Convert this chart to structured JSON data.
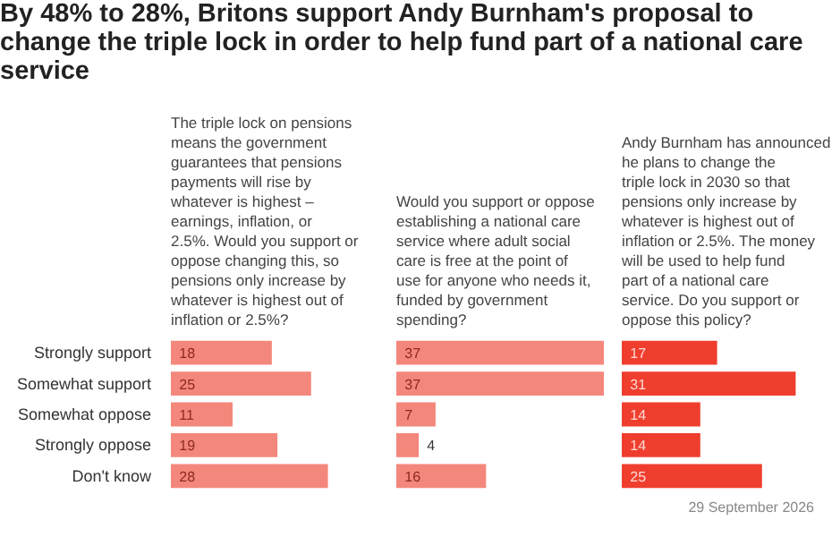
{
  "chart_data": [
    {
      "type": "bar",
      "orientation": "horizontal",
      "title": "By 48% to 28%, Britons support Andy Burnham's proposal to change the triple lock in order to help fund part of a national care service",
      "subtitle": "The triple lock on pensions means the government guarantees that pensions payments will rise by whatever is highest – earnings, inflation, or 2.5%. Would you support or oppose changing this, so pensions only increase by whatever is highest out of inflation or 2.5%?",
      "categories": [
        "Strongly support",
        "Somewhat support",
        "Somewhat oppose",
        "Strongly oppose",
        "Don't know"
      ],
      "values": [
        18,
        25,
        11,
        19,
        28
      ],
      "color": "#f4877c",
      "data_labels": true,
      "tick_labels": "y",
      "grid": false
    },
    {
      "type": "bar",
      "orientation": "horizontal",
      "subtitle": "Would you support or oppose establishing a national care service where adult social care is free at the point of use for anyone who needs it, funded by government spending?",
      "values": [
        37,
        37,
        7,
        4,
        16
      ],
      "color": "#f4877c",
      "data_labels": true,
      "tick_labels": false,
      "grid": false
    },
    {
      "type": "bar",
      "orientation": "horizontal",
      "subtitle": "Andy Burnham has announced he plans to change the triple lock in 2030 so that pensions only increase by whatever is highest out of inflation or 2.5%. The money will be used to help fund part of a national care service. Do you support or oppose this policy?",
      "values": [
        17,
        31,
        14,
        14,
        25
      ],
      "color": "#ef3e2e",
      "data_labels": true,
      "tick_labels": false,
      "grid": false,
      "annotations": [
        "29 September 2026"
      ]
    }
  ]
}
